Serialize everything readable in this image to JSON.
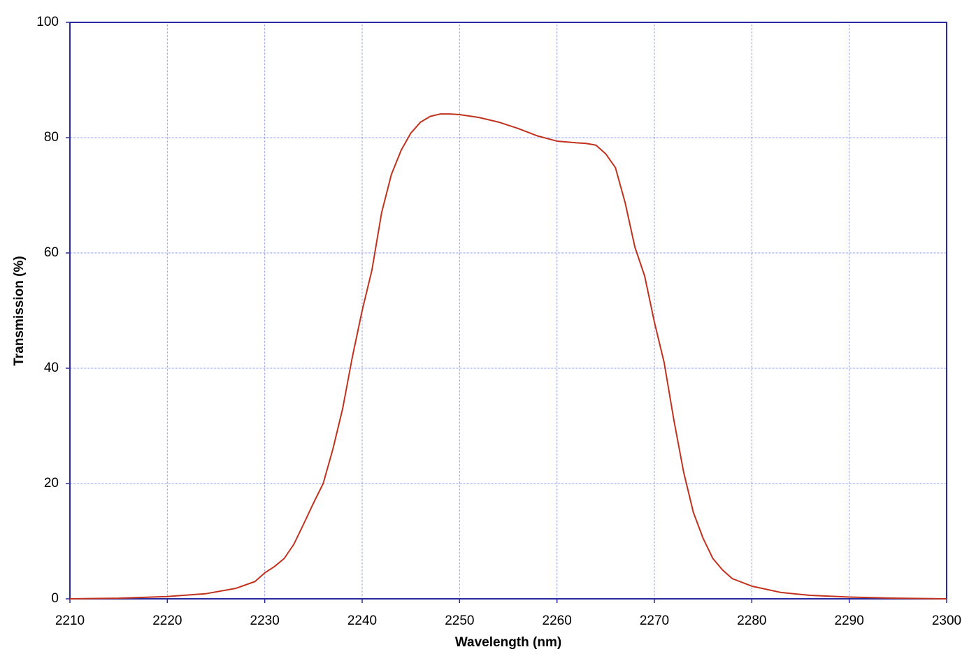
{
  "chart_data": {
    "type": "line",
    "x_label": "Wavelength (nm)",
    "y_label": "Transmission (%)",
    "x": [
      2210,
      2215,
      2220,
      2224,
      2227,
      2229,
      2230,
      2231,
      2232,
      2233,
      2234,
      2235,
      2236,
      2237,
      2238,
      2239,
      2240,
      2241,
      2242,
      2243,
      2244,
      2245,
      2246,
      2247,
      2248,
      2249,
      2250,
      2252,
      2254,
      2256,
      2258,
      2260,
      2262,
      2263,
      2264,
      2265,
      2266,
      2267,
      2268,
      2269,
      2270,
      2271,
      2272,
      2273,
      2274,
      2275,
      2276,
      2277,
      2278,
      2280,
      2283,
      2286,
      2290,
      2295,
      2300
    ],
    "series": [
      {
        "name": "Transmission",
        "color": "#c0321e",
        "values": [
          0,
          0.1,
          0.4,
          0.9,
          1.8,
          3,
          4.5,
          5.6,
          7,
          9.5,
          13,
          16.6,
          20,
          26,
          33,
          42,
          50,
          57,
          67,
          73.6,
          77.8,
          80.8,
          82.7,
          83.7,
          84.1,
          84.1,
          84,
          83.5,
          82.7,
          81.6,
          80.3,
          79.4,
          79.1,
          79,
          78.7,
          77.2,
          74.8,
          68.7,
          61,
          56,
          48,
          41,
          31,
          22,
          15,
          10.5,
          7,
          5,
          3.5,
          2.2,
          1.1,
          0.6,
          0.3,
          0.1,
          0
        ]
      }
    ],
    "xlim": [
      2210,
      2300
    ],
    "xticks": [
      2210,
      2220,
      2230,
      2240,
      2250,
      2260,
      2270,
      2280,
      2290,
      2300
    ],
    "ylim": [
      0,
      100
    ],
    "yticks": [
      0,
      20,
      40,
      60,
      80,
      100
    ],
    "grid": true
  }
}
